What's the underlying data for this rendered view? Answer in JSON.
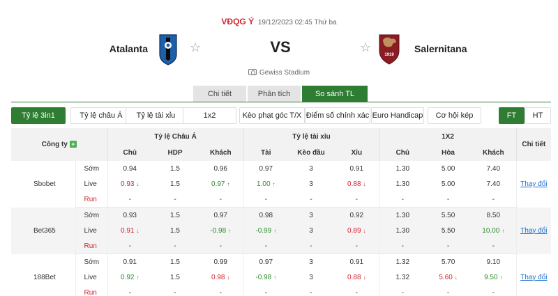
{
  "match": {
    "league": "VĐQG Ý",
    "datetime": "19/12/2023 02:45 Thứ ba",
    "home_team": "Atalanta",
    "away_team": "Salernitana",
    "vs_label": "VS",
    "away_badge_text": "1919",
    "stadium": "Gewiss Stadium",
    "colors": {
      "league": "#d0262f",
      "home_logo": "#1d5fa8",
      "away_logo": "#8b1c24"
    }
  },
  "main_tabs": [
    {
      "label": "Chi tiết",
      "active": false
    },
    {
      "label": "Phân tích",
      "active": false
    },
    {
      "label": "So sánh TL",
      "active": true
    }
  ],
  "sub_tabs": [
    {
      "label": "Tỷ lệ 3in1",
      "active": true
    },
    {
      "label": "Tỷ lệ châu Á",
      "active": false
    },
    {
      "label": "Tỷ lệ tài xỉu",
      "active": false
    },
    {
      "label": "1x2",
      "active": false
    },
    {
      "label": "Kèo phạt góc T/X",
      "active": false
    },
    {
      "label": "Điểm số chính xác",
      "active": false
    },
    {
      "label": "Euro Handicap",
      "active": false
    },
    {
      "label": "Cơ hội kép",
      "active": false
    }
  ],
  "time_toggle": [
    {
      "label": "FT",
      "active": true
    },
    {
      "label": "HT",
      "active": false
    }
  ],
  "table": {
    "company_header": "Công ty",
    "group_headers": [
      "Tỷ lệ Châu Á",
      "Tỷ lệ tài xỉu",
      "1X2"
    ],
    "detail_header": "Chi tiết",
    "sub_headers": [
      "Chủ",
      "HDP",
      "Khách",
      "Tài",
      "Kèo đầu",
      "Xỉu",
      "Chủ",
      "Hòa",
      "Khách"
    ],
    "bookmakers": [
      {
        "name": "Sbobet",
        "link": "Thay đổi",
        "rows": [
          {
            "phase": "Sớm",
            "cells": [
              {
                "v": "0.94",
                "d": ""
              },
              {
                "v": "1.5",
                "d": ""
              },
              {
                "v": "0.96",
                "d": ""
              },
              {
                "v": "0.97",
                "d": ""
              },
              {
                "v": "3",
                "d": ""
              },
              {
                "v": "0.91",
                "d": ""
              },
              {
                "v": "1.30",
                "d": ""
              },
              {
                "v": "5.00",
                "d": ""
              },
              {
                "v": "7.40",
                "d": ""
              }
            ]
          },
          {
            "phase": "Live",
            "cells": [
              {
                "v": "0.93",
                "d": "down"
              },
              {
                "v": "1.5",
                "d": ""
              },
              {
                "v": "0.97",
                "d": "up"
              },
              {
                "v": "1.00",
                "d": "up"
              },
              {
                "v": "3",
                "d": ""
              },
              {
                "v": "0.88",
                "d": "down"
              },
              {
                "v": "1.30",
                "d": ""
              },
              {
                "v": "5.00",
                "d": ""
              },
              {
                "v": "7.40",
                "d": ""
              }
            ]
          },
          {
            "phase": "Run",
            "cells": [
              {
                "v": "-",
                "d": ""
              },
              {
                "v": "-",
                "d": ""
              },
              {
                "v": "-",
                "d": ""
              },
              {
                "v": "-",
                "d": ""
              },
              {
                "v": "-",
                "d": ""
              },
              {
                "v": "-",
                "d": ""
              },
              {
                "v": "-",
                "d": ""
              },
              {
                "v": "-",
                "d": ""
              },
              {
                "v": "-",
                "d": ""
              }
            ]
          }
        ]
      },
      {
        "name": "Bet365",
        "link": "Thay đổi",
        "rows": [
          {
            "phase": "Sớm",
            "cells": [
              {
                "v": "0.93",
                "d": ""
              },
              {
                "v": "1.5",
                "d": ""
              },
              {
                "v": "0.97",
                "d": ""
              },
              {
                "v": "0.98",
                "d": ""
              },
              {
                "v": "3",
                "d": ""
              },
              {
                "v": "0.92",
                "d": ""
              },
              {
                "v": "1.30",
                "d": ""
              },
              {
                "v": "5.50",
                "d": ""
              },
              {
                "v": "8.50",
                "d": ""
              }
            ]
          },
          {
            "phase": "Live",
            "cells": [
              {
                "v": "0.91",
                "d": "down"
              },
              {
                "v": "1.5",
                "d": ""
              },
              {
                "v": "-0.98",
                "d": "up"
              },
              {
                "v": "-0.99",
                "d": "up"
              },
              {
                "v": "3",
                "d": ""
              },
              {
                "v": "0.89",
                "d": "down"
              },
              {
                "v": "1.30",
                "d": ""
              },
              {
                "v": "5.50",
                "d": ""
              },
              {
                "v": "10.00",
                "d": "up"
              }
            ]
          },
          {
            "phase": "Run",
            "cells": [
              {
                "v": "-",
                "d": ""
              },
              {
                "v": "-",
                "d": ""
              },
              {
                "v": "-",
                "d": ""
              },
              {
                "v": "-",
                "d": ""
              },
              {
                "v": "-",
                "d": ""
              },
              {
                "v": "-",
                "d": ""
              },
              {
                "v": "-",
                "d": ""
              },
              {
                "v": "-",
                "d": ""
              },
              {
                "v": "-",
                "d": ""
              }
            ]
          }
        ]
      },
      {
        "name": "188Bet",
        "link": "Thay đổi",
        "rows": [
          {
            "phase": "Sớm",
            "cells": [
              {
                "v": "0.91",
                "d": ""
              },
              {
                "v": "1.5",
                "d": ""
              },
              {
                "v": "0.99",
                "d": ""
              },
              {
                "v": "0.97",
                "d": ""
              },
              {
                "v": "3",
                "d": ""
              },
              {
                "v": "0.91",
                "d": ""
              },
              {
                "v": "1.32",
                "d": ""
              },
              {
                "v": "5.70",
                "d": ""
              },
              {
                "v": "9.10",
                "d": ""
              }
            ]
          },
          {
            "phase": "Live",
            "cells": [
              {
                "v": "0.92",
                "d": "up"
              },
              {
                "v": "1.5",
                "d": ""
              },
              {
                "v": "0.98",
                "d": "down"
              },
              {
                "v": "-0.98",
                "d": "up"
              },
              {
                "v": "3",
                "d": ""
              },
              {
                "v": "0.88",
                "d": "down"
              },
              {
                "v": "1.32",
                "d": ""
              },
              {
                "v": "5.60",
                "d": "down"
              },
              {
                "v": "9.50",
                "d": "up"
              }
            ]
          },
          {
            "phase": "Run",
            "cells": [
              {
                "v": "-",
                "d": ""
              },
              {
                "v": "-",
                "d": ""
              },
              {
                "v": "-",
                "d": ""
              },
              {
                "v": "-",
                "d": ""
              },
              {
                "v": "-",
                "d": ""
              },
              {
                "v": "-",
                "d": ""
              },
              {
                "v": "-",
                "d": ""
              },
              {
                "v": "-",
                "d": ""
              },
              {
                "v": "-",
                "d": ""
              }
            ]
          }
        ]
      }
    ]
  }
}
